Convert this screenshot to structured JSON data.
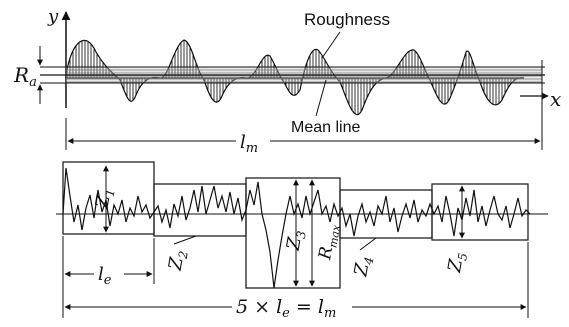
{
  "labels": {
    "roughness": "Roughness",
    "mean_line": "Mean line",
    "y_axis": "y",
    "x_axis": "x",
    "ra": "Ra",
    "lm": "lm",
    "le": "le",
    "z1": "Z1",
    "z2": "Z2",
    "z3": "Z3",
    "z4": "Z4",
    "z5": "Z5",
    "rmax": "Rmax",
    "formula": "5 × le = lm"
  },
  "colors": {
    "ink": "#111111",
    "hatch": "#444444",
    "paper": "#ffffff"
  }
}
